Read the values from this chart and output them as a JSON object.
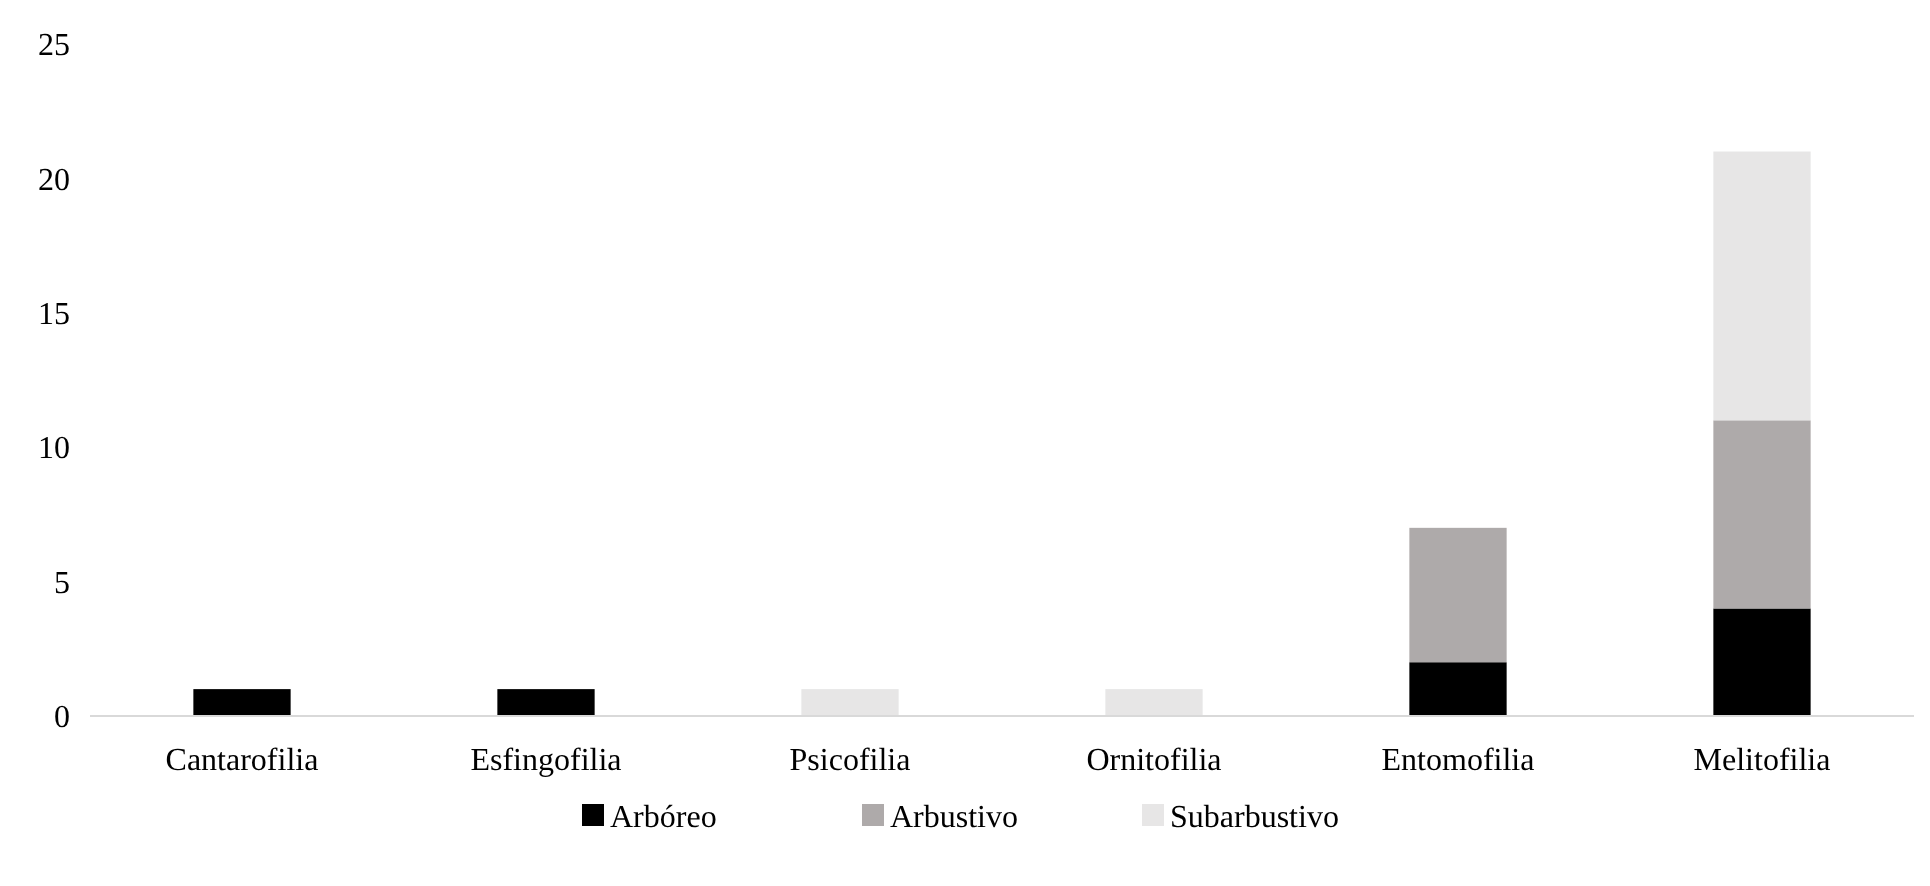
{
  "chart_data": {
    "type": "bar",
    "stacked": true,
    "categories": [
      "Cantarofilia",
      "Esfingofilia",
      "Psicofilia",
      "Ornitofilia",
      "Entomofilia",
      "Melitofilia"
    ],
    "series": [
      {
        "name": "Arbóreo",
        "color": "#000000",
        "values": [
          1,
          1,
          null,
          null,
          2,
          4
        ]
      },
      {
        "name": "Arbustivo",
        "color": "#aeaaaa",
        "values": [
          null,
          null,
          null,
          null,
          5,
          7
        ]
      },
      {
        "name": "Subarbustivo",
        "color": "#e7e6e6",
        "values": [
          null,
          null,
          1,
          1,
          null,
          10
        ]
      }
    ],
    "ylim": [
      0,
      25
    ],
    "yticks": [
      0,
      5,
      10,
      15,
      20,
      25
    ],
    "grid": false,
    "legend": "bottom"
  }
}
